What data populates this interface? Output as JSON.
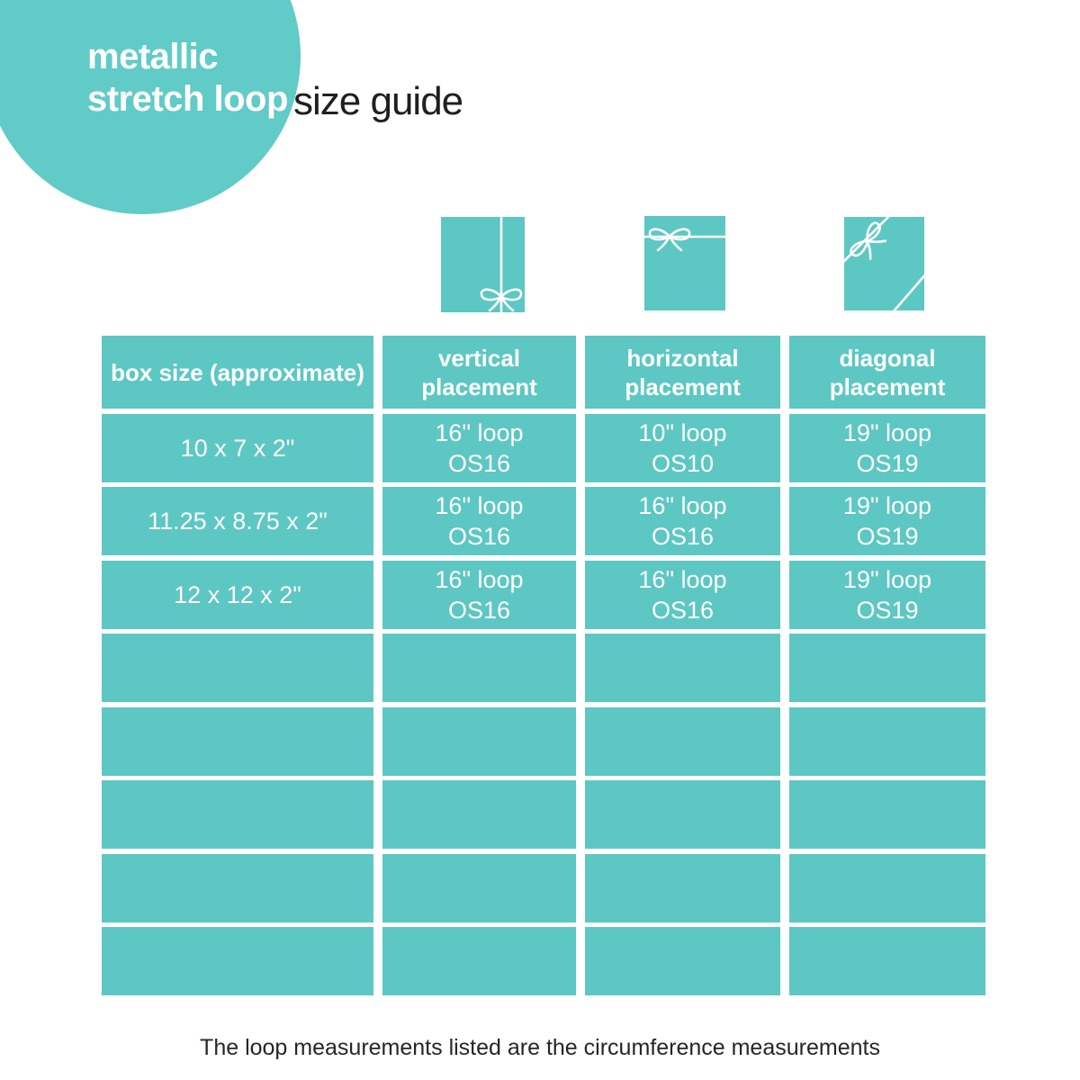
{
  "colors": {
    "teal": "#5dc7c3",
    "teal_circle": "#61cbc7",
    "dark_text": "#1f1f1f",
    "white_text": "#ffffff"
  },
  "title": {
    "line1": "metallic",
    "line2": "stretch loop",
    "suffix": "size guide"
  },
  "icons": {
    "vertical": "gift-box-vertical-ribbon-icon",
    "horizontal": "gift-box-horizontal-ribbon-icon",
    "diagonal": "gift-box-diagonal-ribbon-icon"
  },
  "table": {
    "headers": [
      "box size (approximate)",
      "vertical\nplacement",
      "horizontal\nplacement",
      "diagonal\nplacement"
    ],
    "rows": [
      [
        "10 x 7 x 2\"",
        "16\" loop\nOS16",
        "10\" loop\nOS10",
        "19\" loop\nOS19"
      ],
      [
        "11.25 x 8.75 x 2\"",
        "16\" loop\nOS16",
        "16\" loop\nOS16",
        "19\" loop\nOS19"
      ],
      [
        "12 x 12 x 2\"",
        "16\" loop\nOS16",
        "16\" loop\nOS16",
        "19\" loop\nOS19"
      ]
    ],
    "empty_rows": 5
  },
  "footer": "The loop measurements listed are the circumference measurements",
  "chart_data": {
    "type": "table",
    "title": "metallic stretch loop size guide",
    "columns": [
      "box size (approximate)",
      "vertical placement",
      "horizontal placement",
      "diagonal placement"
    ],
    "rows": [
      [
        "10 x 7 x 2\"",
        "16\" loop (OS16)",
        "10\" loop (OS10)",
        "19\" loop (OS19)"
      ],
      [
        "11.25 x 8.75 x 2\"",
        "16\" loop (OS16)",
        "16\" loop (OS16)",
        "19\" loop (OS19)"
      ],
      [
        "12 x 12 x 2\"",
        "16\" loop (OS16)",
        "16\" loop (OS16)",
        "19\" loop (OS19)"
      ]
    ],
    "note": "The loop measurements listed are the circumference measurements"
  }
}
